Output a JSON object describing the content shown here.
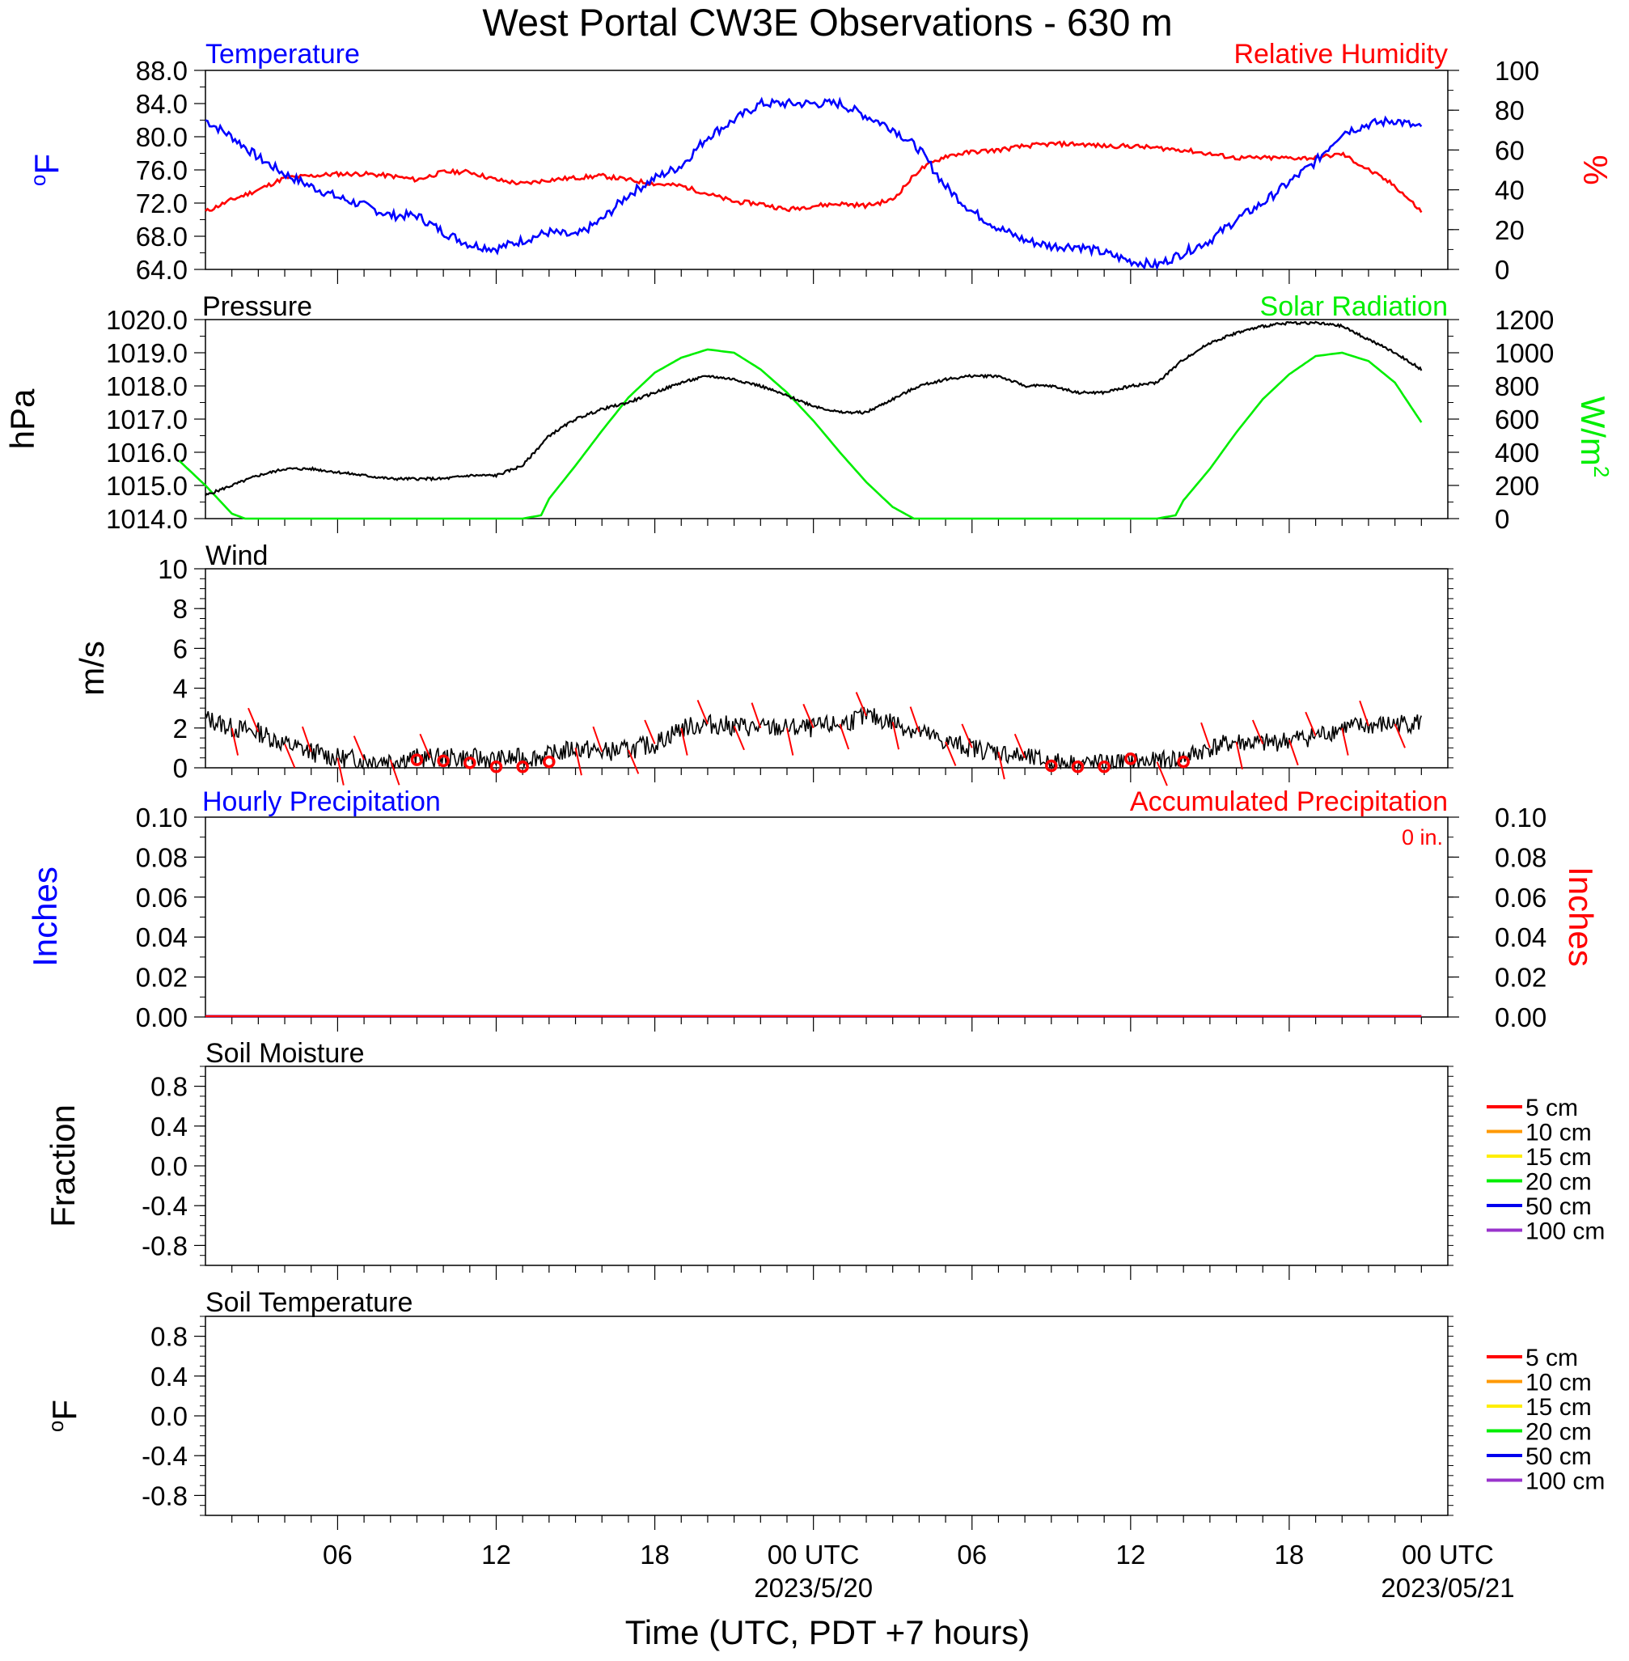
{
  "title": "West Portal CW3E Observations - 630 m",
  "x_axis": {
    "title": "Time (UTC, PDT +7 hours)",
    "range": [
      "2023-05-19T01:00Z",
      "2023-05-21T00:00Z"
    ],
    "ticks": [
      {
        "time": "2023-05-19T06:00Z",
        "label": "06",
        "date": ""
      },
      {
        "time": "2023-05-19T12:00Z",
        "label": "12",
        "date": ""
      },
      {
        "time": "2023-05-19T18:00Z",
        "label": "18",
        "date": ""
      },
      {
        "time": "2023-05-20T00:00Z",
        "label": "00 UTC",
        "date": "2023/5/20"
      },
      {
        "time": "2023-05-20T06:00Z",
        "label": "06",
        "date": ""
      },
      {
        "time": "2023-05-20T12:00Z",
        "label": "12",
        "date": ""
      },
      {
        "time": "2023-05-20T18:00Z",
        "label": "18",
        "date": ""
      },
      {
        "time": "2023-05-21T00:00Z",
        "label": "00 UTC",
        "date": "2023/05/21"
      }
    ]
  },
  "panels": {
    "temp_rh": {
      "left_title": "Temperature",
      "right_title": "Relative Humidity",
      "left_unit": "oF",
      "right_unit": "%",
      "left_ticks": [
        "64.0",
        "68.0",
        "72.0",
        "76.0",
        "80.0",
        "84.0",
        "88.0"
      ],
      "right_ticks": [
        "0",
        "20",
        "40",
        "60",
        "80",
        "100"
      ]
    },
    "pressure_solar": {
      "left_title": "Pressure",
      "right_title": "Solar Radiation",
      "left_unit": "hPa",
      "right_unit": "W/m",
      "right_unit_sup": "2",
      "left_ticks": [
        "1014.0",
        "1015.0",
        "1016.0",
        "1017.0",
        "1018.0",
        "1019.0",
        "1020.0"
      ],
      "right_ticks": [
        "0",
        "200",
        "400",
        "600",
        "800",
        "1000",
        "1200"
      ]
    },
    "wind": {
      "left_title": "Wind",
      "left_unit": "m/s",
      "left_ticks": [
        "0",
        "2",
        "4",
        "6",
        "8",
        "10"
      ]
    },
    "precip": {
      "left_title": "Hourly Precipitation",
      "right_title": "Accumulated Precipitation",
      "left_unit": "Inches",
      "right_unit": "Inches",
      "accum_label": "0 in.",
      "left_ticks": [
        "0.00",
        "0.02",
        "0.04",
        "0.06",
        "0.08",
        "0.10"
      ],
      "right_ticks": [
        "0.00",
        "0.02",
        "0.04",
        "0.06",
        "0.08",
        "0.10"
      ]
    },
    "soil_moisture": {
      "left_title": "Soil Moisture",
      "left_unit": "Fraction",
      "left_ticks": [
        "-0.8",
        "-0.4",
        "0.0",
        "0.4",
        "0.8"
      ],
      "legend": [
        "5 cm",
        "10 cm",
        "15 cm",
        "20 cm",
        "50 cm",
        "100 cm"
      ]
    },
    "soil_temperature": {
      "left_title": "Soil Temperature",
      "left_unit": "oF",
      "left_ticks": [
        "-0.8",
        "-0.4",
        "0.0",
        "0.4",
        "0.8"
      ],
      "legend": [
        "5 cm",
        "10 cm",
        "15 cm",
        "20 cm",
        "50 cm",
        "100 cm"
      ]
    }
  },
  "colors": {
    "temperature": "#0000ff",
    "relative_humidity": "#ff0000",
    "pressure": "#000000",
    "solar_radiation": "#00ee00",
    "wind_speed": "#000000",
    "wind_barb": "#ff0000",
    "calm_marker": "#ff0000",
    "hourly_precip": "#0000ff",
    "accum_precip": "#ff0000",
    "soil_legend": [
      "#ff0000",
      "#ff9900",
      "#ffee00",
      "#00ee00",
      "#0000ee",
      "#9933cc"
    ]
  },
  "chart_data": [
    {
      "type": "line",
      "title": "Temperature / Relative Humidity",
      "x_units": "hours since 2023-05-19 00 UTC",
      "ylim_left": [
        64,
        88
      ],
      "ylim_right": [
        0,
        100
      ],
      "series": [
        {
          "name": "Temperature",
          "axis": "left",
          "unit": "°F",
          "x": [
            1,
            2,
            3,
            4,
            5,
            6,
            7,
            8,
            9,
            10,
            11,
            12,
            13,
            14,
            15,
            16,
            17,
            18,
            19,
            20,
            21,
            22,
            23,
            24,
            25,
            26,
            27,
            28,
            29,
            30,
            31,
            32,
            33,
            34,
            35,
            36,
            37,
            38,
            39,
            40,
            41,
            42,
            43,
            44,
            45,
            46,
            47
          ],
          "values": [
            82.0,
            80.0,
            77.5,
            75.5,
            74.0,
            72.7,
            71.7,
            70.5,
            70.5,
            68.5,
            67.0,
            66.5,
            67.5,
            68.5,
            68.0,
            70.0,
            73.0,
            75.0,
            76.5,
            80.0,
            82.0,
            84.0,
            84.0,
            84.0,
            84.0,
            82.5,
            81.0,
            78.5,
            74.0,
            71.0,
            69.0,
            67.5,
            66.8,
            66.8,
            66.0,
            65.0,
            64.5,
            66.0,
            67.5,
            70.0,
            72.0,
            74.5,
            77.0,
            80.5,
            81.5,
            82.0,
            81.0
          ]
        },
        {
          "name": "Relative Humidity",
          "axis": "right",
          "unit": "%",
          "x": [
            1,
            2,
            3,
            4,
            5,
            6,
            7,
            8,
            9,
            10,
            11,
            12,
            13,
            14,
            15,
            16,
            17,
            18,
            19,
            20,
            21,
            22,
            23,
            24,
            25,
            26,
            27,
            28,
            29,
            30,
            31,
            32,
            33,
            34,
            35,
            36,
            37,
            38,
            39,
            40,
            41,
            42,
            43,
            44,
            45,
            46,
            47
          ],
          "values": [
            29,
            35,
            40,
            46,
            47,
            48,
            48,
            47,
            45,
            49,
            49,
            45,
            43,
            45,
            46,
            47,
            45,
            43,
            42,
            38,
            34,
            33,
            30,
            32,
            33,
            32,
            35,
            50,
            57,
            59,
            60,
            62,
            63,
            63,
            62,
            62,
            61,
            60,
            58,
            56,
            56,
            56,
            56,
            58,
            50,
            42,
            29
          ]
        }
      ]
    },
    {
      "type": "line",
      "title": "Pressure / Solar Radiation",
      "x_units": "hours since 2023-05-19 00 UTC",
      "ylim_left": [
        1014,
        1020
      ],
      "ylim_right": [
        0,
        1200
      ],
      "series": [
        {
          "name": "Pressure",
          "axis": "left",
          "unit": "hPa",
          "x": [
            1,
            2,
            3,
            4,
            5,
            6,
            7,
            8,
            9,
            10,
            11,
            12,
            13,
            14,
            15,
            16,
            17,
            18,
            19,
            20,
            21,
            22,
            23,
            24,
            25,
            26,
            27,
            28,
            29,
            30,
            31,
            32,
            33,
            34,
            35,
            36,
            37,
            38,
            39,
            40,
            41,
            42,
            43,
            44,
            45,
            46,
            47
          ],
          "values": [
            1014.7,
            1015.0,
            1015.3,
            1015.5,
            1015.5,
            1015.4,
            1015.3,
            1015.2,
            1015.2,
            1015.2,
            1015.3,
            1015.3,
            1015.6,
            1016.5,
            1017.0,
            1017.3,
            1017.5,
            1017.8,
            1018.1,
            1018.3,
            1018.2,
            1018.0,
            1017.7,
            1017.4,
            1017.2,
            1017.2,
            1017.6,
            1018.0,
            1018.2,
            1018.3,
            1018.3,
            1018.0,
            1018.0,
            1017.8,
            1017.8,
            1018.0,
            1018.1,
            1018.8,
            1019.3,
            1019.6,
            1019.8,
            1019.9,
            1019.9,
            1019.8,
            1019.4,
            1019.0,
            1018.5
          ]
        },
        {
          "name": "Solar Radiation",
          "axis": "right",
          "unit": "W/m²",
          "x": [
            0,
            1,
            2,
            2.5,
            13,
            13.7,
            14,
            15,
            16,
            17,
            18,
            19,
            20,
            21,
            22,
            23,
            24,
            25,
            26,
            27,
            27.8,
            37,
            37.7,
            38,
            39,
            40,
            41,
            42,
            43,
            44,
            45,
            46,
            47
          ],
          "values": [
            350,
            200,
            30,
            0,
            0,
            20,
            120,
            320,
            530,
            730,
            880,
            970,
            1020,
            1000,
            900,
            760,
            590,
            400,
            220,
            70,
            0,
            0,
            20,
            110,
            300,
            520,
            720,
            870,
            980,
            1000,
            950,
            820,
            580
          ]
        }
      ]
    },
    {
      "type": "line",
      "title": "Wind",
      "x_units": "hours since 2023-05-19 00 UTC",
      "ylim": [
        0,
        10
      ],
      "series": [
        {
          "name": "Wind Speed",
          "unit": "m/s",
          "x": [
            1,
            2,
            3,
            4,
            5,
            6,
            7,
            8,
            9,
            10,
            11,
            12,
            13,
            14,
            15,
            16,
            17,
            18,
            19,
            20,
            21,
            22,
            23,
            24,
            25,
            26,
            27,
            28,
            29,
            30,
            31,
            32,
            33,
            34,
            35,
            36,
            37,
            38,
            39,
            40,
            41,
            42,
            43,
            44,
            45,
            46,
            47
          ],
          "values": [
            2.5,
            2.0,
            1.8,
            1.2,
            0.8,
            0.5,
            0.4,
            0.4,
            0.5,
            0.5,
            0.5,
            0.4,
            0.5,
            0.6,
            1.0,
            0.8,
            0.9,
            1.2,
            2.0,
            2.2,
            2.1,
            2.0,
            2.0,
            2.0,
            2.2,
            2.6,
            2.3,
            1.8,
            1.3,
            1.0,
            0.8,
            0.5,
            0.3,
            0.2,
            0.2,
            0.3,
            0.3,
            0.5,
            1.0,
            1.3,
            1.2,
            1.4,
            1.6,
            2.0,
            2.1,
            2.2,
            2.3
          ]
        }
      ],
      "calm_hours": [
        9,
        10,
        11,
        12,
        13,
        14,
        33,
        34,
        35,
        36,
        38
      ],
      "calm_values": [
        0.4,
        0.35,
        0.25,
        0.05,
        0.05,
        0.3,
        0.1,
        0.05,
        0.05,
        0.45,
        0.3
      ]
    },
    {
      "type": "line",
      "title": "Hourly / Accumulated Precipitation",
      "ylim_left": [
        0,
        0.1
      ],
      "ylim_right": [
        0,
        0.1
      ],
      "series": [
        {
          "name": "Hourly Precipitation",
          "axis": "left",
          "unit": "in",
          "x": [
            1,
            47
          ],
          "values": [
            0,
            0
          ]
        },
        {
          "name": "Accumulated Precipitation",
          "axis": "right",
          "unit": "in",
          "x": [
            1,
            47
          ],
          "values": [
            0,
            0
          ]
        }
      ]
    },
    {
      "type": "line",
      "title": "Soil Moisture",
      "ylim": [
        -1,
        1
      ],
      "series": []
    },
    {
      "type": "line",
      "title": "Soil Temperature",
      "ylim": [
        -1,
        1
      ],
      "series": []
    }
  ]
}
